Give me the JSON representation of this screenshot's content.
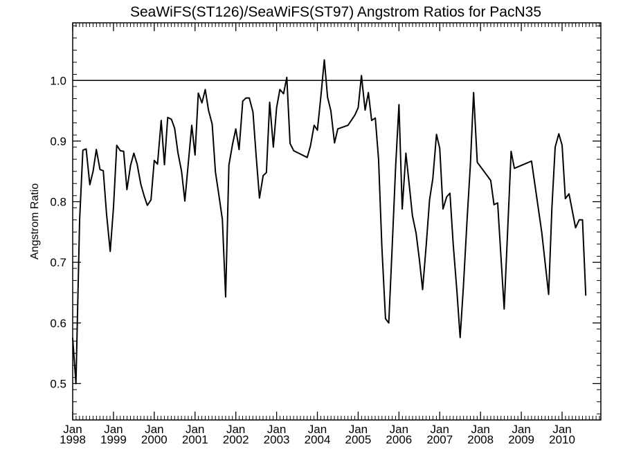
{
  "chart_data": {
    "type": "line",
    "title": "SeaWiFS(ST126)/SeaWiFS(ST97)  Angstrom Ratios for PacN35",
    "ylabel": "Angstrom Ratio",
    "xlabel": "",
    "x_range": [
      1998.0,
      2010.95
    ],
    "y_range": [
      0.44,
      1.095
    ],
    "y_ticks": [
      "0.5",
      "0.6",
      "0.7",
      "0.8",
      "0.9",
      "1.0"
    ],
    "y_tick_values": [
      0.5,
      0.6,
      0.7,
      0.8,
      0.9,
      1.0
    ],
    "x_ticks": [
      {
        "value": 1998,
        "month": "Jan",
        "year": "1998"
      },
      {
        "value": 1999,
        "month": "Jan",
        "year": "1999"
      },
      {
        "value": 2000,
        "month": "Jan",
        "year": "2000"
      },
      {
        "value": 2001,
        "month": "Jan",
        "year": "2001"
      },
      {
        "value": 2002,
        "month": "Jan",
        "year": "2002"
      },
      {
        "value": 2003,
        "month": "Jan",
        "year": "2003"
      },
      {
        "value": 2004,
        "month": "Jan",
        "year": "2004"
      },
      {
        "value": 2005,
        "month": "Jan",
        "year": "2005"
      },
      {
        "value": 2006,
        "month": "Jan",
        "year": "2006"
      },
      {
        "value": 2007,
        "month": "Jan",
        "year": "2007"
      },
      {
        "value": 2008,
        "month": "Jan",
        "year": "2008"
      },
      {
        "value": 2009,
        "month": "Jan",
        "year": "2009"
      },
      {
        "value": 2010,
        "month": "Jan",
        "year": "2010"
      }
    ],
    "reference_line": 1.0,
    "grid": false,
    "series": [
      {
        "points": [
          [
            1998.0,
            0.575
          ],
          [
            1998.08,
            0.5
          ],
          [
            1998.17,
            0.77
          ],
          [
            1998.25,
            0.885
          ],
          [
            1998.33,
            0.887
          ],
          [
            1998.42,
            0.828
          ],
          [
            1998.5,
            0.85
          ],
          [
            1998.58,
            0.886
          ],
          [
            1998.67,
            0.853
          ],
          [
            1998.75,
            0.851
          ],
          [
            1998.83,
            0.78
          ],
          [
            1998.92,
            0.718
          ],
          [
            1999.0,
            0.79
          ],
          [
            1999.08,
            0.893
          ],
          [
            1999.17,
            0.884
          ],
          [
            1999.25,
            0.883
          ],
          [
            1999.33,
            0.82
          ],
          [
            1999.42,
            0.86
          ],
          [
            1999.5,
            0.88
          ],
          [
            1999.58,
            0.862
          ],
          [
            1999.67,
            0.829
          ],
          [
            1999.75,
            0.81
          ],
          [
            1999.83,
            0.794
          ],
          [
            1999.92,
            0.803
          ],
          [
            2000.0,
            0.868
          ],
          [
            2000.08,
            0.862
          ],
          [
            2000.17,
            0.934
          ],
          [
            2000.25,
            0.861
          ],
          [
            2000.33,
            0.939
          ],
          [
            2000.42,
            0.936
          ],
          [
            2000.5,
            0.921
          ],
          [
            2000.58,
            0.881
          ],
          [
            2000.67,
            0.85
          ],
          [
            2000.75,
            0.801
          ],
          [
            2000.83,
            0.86
          ],
          [
            2000.92,
            0.926
          ],
          [
            2001.0,
            0.877
          ],
          [
            2001.08,
            0.979
          ],
          [
            2001.17,
            0.963
          ],
          [
            2001.25,
            0.985
          ],
          [
            2001.33,
            0.951
          ],
          [
            2001.42,
            0.928
          ],
          [
            2001.5,
            0.849
          ],
          [
            2001.58,
            0.813
          ],
          [
            2001.67,
            0.771
          ],
          [
            2001.75,
            0.643
          ],
          [
            2001.83,
            0.86
          ],
          [
            2001.92,
            0.895
          ],
          [
            2002.0,
            0.92
          ],
          [
            2002.08,
            0.886
          ],
          [
            2002.17,
            0.966
          ],
          [
            2002.25,
            0.971
          ],
          [
            2002.33,
            0.971
          ],
          [
            2002.42,
            0.948
          ],
          [
            2002.5,
            0.874
          ],
          [
            2002.58,
            0.806
          ],
          [
            2002.67,
            0.843
          ],
          [
            2002.75,
            0.848
          ],
          [
            2002.83,
            0.964
          ],
          [
            2002.92,
            0.89
          ],
          [
            2003.0,
            0.955
          ],
          [
            2003.08,
            0.985
          ],
          [
            2003.17,
            0.978
          ],
          [
            2003.25,
            1.005
          ],
          [
            2003.33,
            0.896
          ],
          [
            2003.42,
            0.884
          ],
          [
            2003.75,
            0.873
          ],
          [
            2003.83,
            0.892
          ],
          [
            2003.92,
            0.926
          ],
          [
            2004.0,
            0.918
          ],
          [
            2004.08,
            0.97
          ],
          [
            2004.17,
            1.034
          ],
          [
            2004.25,
            0.972
          ],
          [
            2004.33,
            0.95
          ],
          [
            2004.42,
            0.897
          ],
          [
            2004.5,
            0.92
          ],
          [
            2004.75,
            0.926
          ],
          [
            2004.92,
            0.943
          ],
          [
            2005.0,
            0.955
          ],
          [
            2005.08,
            1.008
          ],
          [
            2005.17,
            0.951
          ],
          [
            2005.25,
            0.98
          ],
          [
            2005.33,
            0.934
          ],
          [
            2005.42,
            0.938
          ],
          [
            2005.5,
            0.87
          ],
          [
            2005.58,
            0.727
          ],
          [
            2005.67,
            0.607
          ],
          [
            2005.75,
            0.6
          ],
          [
            2005.83,
            0.72
          ],
          [
            2005.92,
            0.86
          ],
          [
            2006.0,
            0.96
          ],
          [
            2006.08,
            0.788
          ],
          [
            2006.17,
            0.88
          ],
          [
            2006.25,
            0.829
          ],
          [
            2006.33,
            0.777
          ],
          [
            2006.42,
            0.748
          ],
          [
            2006.5,
            0.705
          ],
          [
            2006.58,
            0.655
          ],
          [
            2006.67,
            0.73
          ],
          [
            2006.75,
            0.803
          ],
          [
            2006.83,
            0.838
          ],
          [
            2006.92,
            0.911
          ],
          [
            2007.0,
            0.888
          ],
          [
            2007.08,
            0.788
          ],
          [
            2007.17,
            0.808
          ],
          [
            2007.25,
            0.814
          ],
          [
            2007.33,
            0.73
          ],
          [
            2007.42,
            0.653
          ],
          [
            2007.5,
            0.576
          ],
          [
            2007.58,
            0.66
          ],
          [
            2007.67,
            0.77
          ],
          [
            2007.75,
            0.86
          ],
          [
            2007.83,
            0.98
          ],
          [
            2007.92,
            0.865
          ],
          [
            2008.25,
            0.835
          ],
          [
            2008.33,
            0.795
          ],
          [
            2008.42,
            0.798
          ],
          [
            2008.5,
            0.71
          ],
          [
            2008.58,
            0.623
          ],
          [
            2008.67,
            0.76
          ],
          [
            2008.75,
            0.883
          ],
          [
            2008.83,
            0.855
          ],
          [
            2009.25,
            0.867
          ],
          [
            2009.5,
            0.75
          ],
          [
            2009.67,
            0.647
          ],
          [
            2009.75,
            0.79
          ],
          [
            2009.83,
            0.89
          ],
          [
            2009.92,
            0.912
          ],
          [
            2010.0,
            0.893
          ],
          [
            2010.08,
            0.805
          ],
          [
            2010.17,
            0.813
          ],
          [
            2010.25,
            0.785
          ],
          [
            2010.33,
            0.757
          ],
          [
            2010.42,
            0.77
          ],
          [
            2010.5,
            0.77
          ],
          [
            2010.58,
            0.646
          ]
        ]
      }
    ]
  }
}
